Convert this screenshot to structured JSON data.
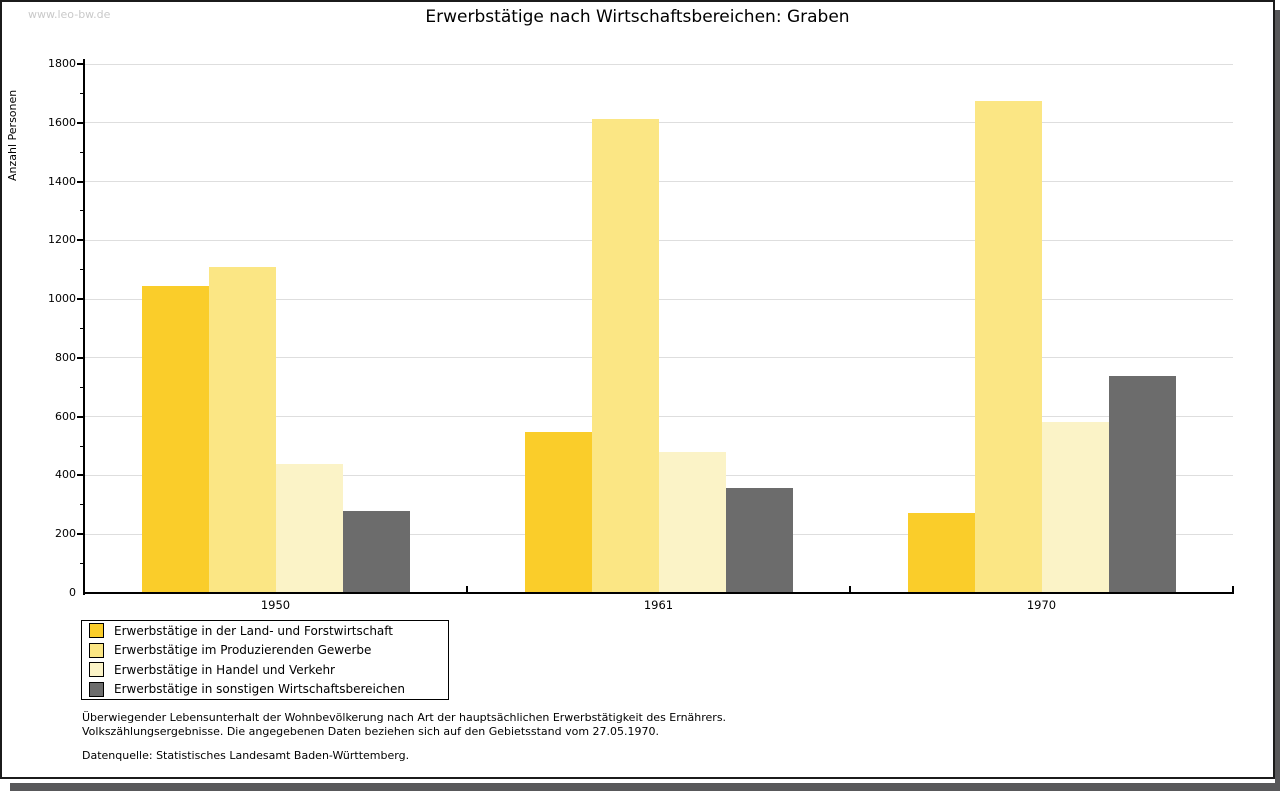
{
  "watermark": "www.leo-bw.de",
  "chart_data": {
    "type": "bar",
    "title": "Erwerbstätige nach Wirtschaftsbereichen: Graben",
    "ylabel": "Anzahl Personen",
    "xlabel": "",
    "categories": [
      "1950",
      "1961",
      "1970"
    ],
    "series": [
      {
        "name": "Erwerbstätige in der Land- und Forstwirtschaft",
        "color": "#facd2a",
        "values": [
          1040,
          545,
          270
        ]
      },
      {
        "name": "Erwerbstätige im Produzierenden Gewerbe",
        "color": "#fbe684",
        "values": [
          1105,
          1610,
          1670
        ]
      },
      {
        "name": "Erwerbstätige in Handel und Verkehr",
        "color": "#fbf3c7",
        "values": [
          435,
          475,
          580
        ]
      },
      {
        "name": "Erwerbstätige in sonstigen Wirtschaftsbereichen",
        "color": "#6c6c6c",
        "values": [
          275,
          355,
          735
        ]
      }
    ],
    "ylim": [
      0,
      1800
    ],
    "ytick_step": 200,
    "y_minor_step": 100,
    "grid": true,
    "legend_position": "bottom-left"
  },
  "footnotes": {
    "line1": "Überwiegender Lebensunterhalt der Wohnbevölkerung nach Art der hauptsächlichen Erwerbstätigkeit des Ernährers.",
    "line2": "Volkszählungsergebnisse. Die angegebenen Daten beziehen sich auf den Gebietsstand vom 27.05.1970.",
    "source": "Datenquelle: Statistisches Landesamt Baden-Württemberg."
  },
  "colors": {
    "axis": "#000000",
    "grid": "#dedede",
    "frame_border": "#1b1b1b",
    "shadow": "#58585a",
    "watermark": "#c9c9c9"
  }
}
